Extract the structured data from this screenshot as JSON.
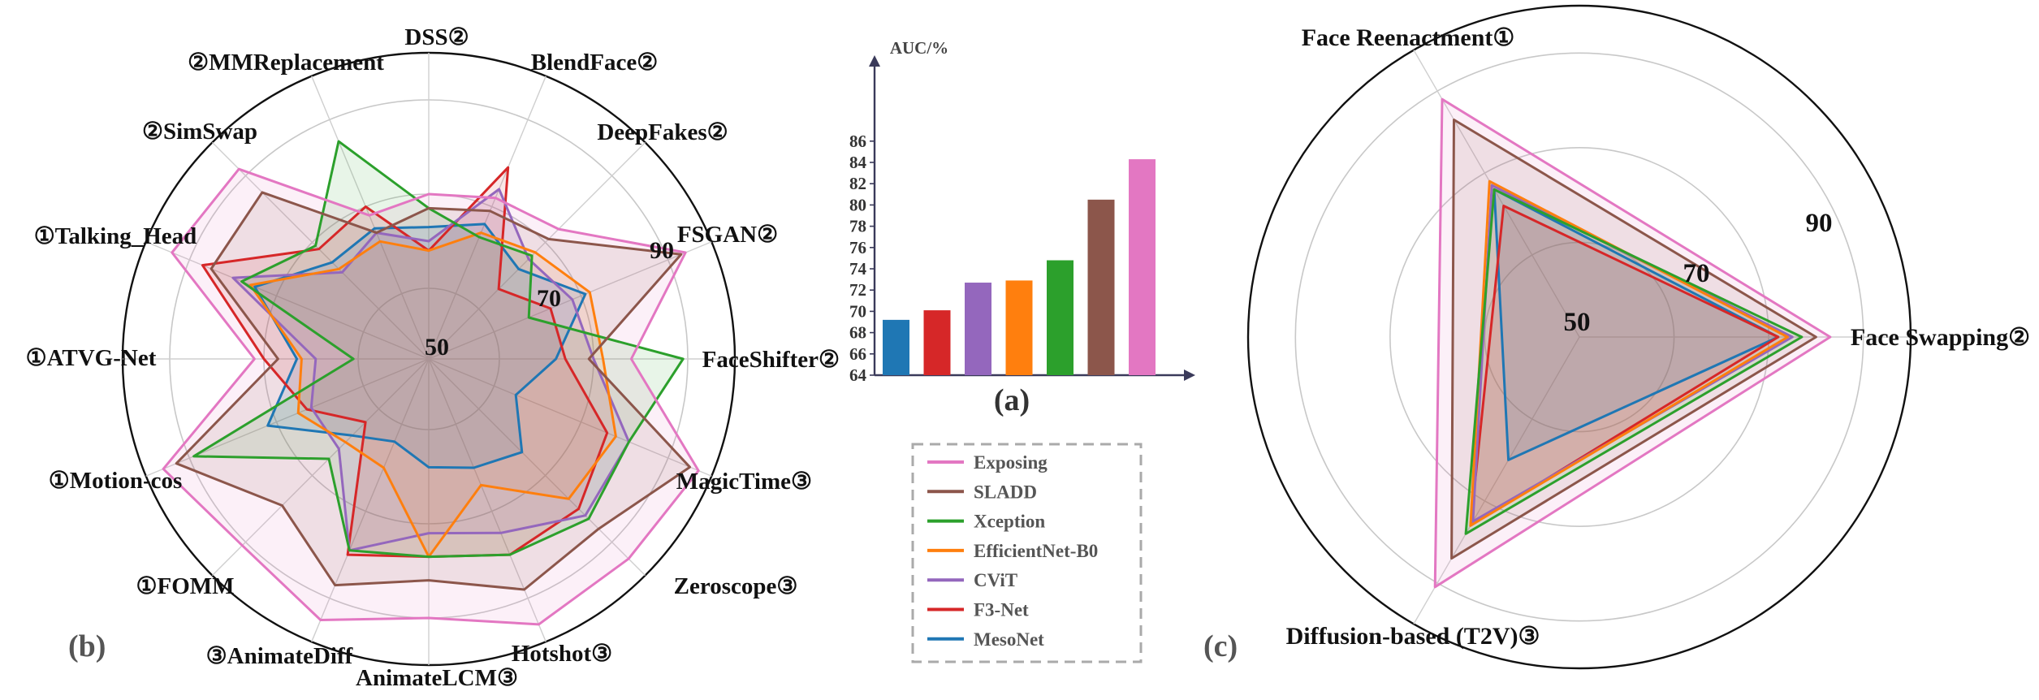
{
  "colors": {
    "Exposing": "#e377c2",
    "SLADD": "#8c564b",
    "Xception": "#2ca02c",
    "EfficientNet-B0": "#ff7f0e",
    "CViT": "#9467bd",
    "F3-Net": "#d62728",
    "MesoNet": "#1f77b4"
  },
  "panel_labels": {
    "a": "(a)",
    "b": "(b)",
    "c": "(c)"
  },
  "legend": [
    "Exposing",
    "SLADD",
    "Xception",
    "EfficientNet-B0",
    "CViT",
    "F3-Net",
    "MesoNet"
  ],
  "chart_data": [
    {
      "panel": "a",
      "type": "bar",
      "ylabel": "AUC/%",
      "ylim": [
        64,
        87
      ],
      "yticks": [
        64,
        66,
        68,
        70,
        72,
        74,
        76,
        78,
        80,
        82,
        84,
        86
      ],
      "categories": [
        "MesoNet",
        "F3-Net",
        "CViT",
        "EfficientNet-B0",
        "Xception",
        "SLADD",
        "Exposing"
      ],
      "values": [
        69.2,
        70.1,
        72.7,
        72.9,
        74.8,
        80.5,
        84.3
      ]
    },
    {
      "panel": "b",
      "type": "radar",
      "rings": [
        50,
        70,
        90
      ],
      "ring_labels": [
        "50",
        "70",
        "90"
      ],
      "r_range": [
        35,
        100
      ],
      "categories": [
        "DSS②",
        "BlendFace②",
        "DeepFakes②",
        "FSGAN②",
        "FaceShifter②",
        "MagicTime③",
        "Zeroscope③",
        "Hotshot③",
        "AnimateLCM③",
        "③AnimateDiff",
        "①FOMM",
        "①Motion-cos",
        "①ATVG-Net",
        "①Talking_Head",
        "②SimSwap",
        "②MMReplacement"
      ],
      "series": [
        {
          "name": "Exposing",
          "values": [
            70,
            72,
            74,
            94,
            78,
            97,
            95,
            96,
            90,
            95,
            91,
            96,
            72,
            94,
            92,
            68
          ]
        },
        {
          "name": "SLADD",
          "values": [
            67,
            69,
            71,
            93,
            69,
            95,
            86,
            88,
            82,
            87,
            79,
            93,
            67,
            85,
            85,
            64
          ]
        },
        {
          "name": "Xception",
          "values": [
            67,
            63,
            66,
            58,
            89,
            81,
            83,
            80,
            77,
            79,
            65,
            89,
            51,
            78,
            69,
            85
          ]
        },
        {
          "name": "EfficientNet-B0",
          "values": [
            58,
            64,
            67,
            72,
            72,
            78,
            77,
            64,
            77,
            60,
            60,
            65,
            62,
            76,
            62,
            62
          ]
        },
        {
          "name": "CViT",
          "values": [
            60,
            74,
            65,
            68,
            70,
            81,
            82,
            75,
            72,
            79,
            62,
            62,
            59,
            80,
            61,
            64
          ]
        },
        {
          "name": "F3-Net",
          "values": [
            58,
            79,
            56,
            63,
            64,
            76,
            80,
            80,
            77,
            80,
            54,
            63,
            70,
            87,
            68,
            70
          ]
        },
        {
          "name": "MesoNet",
          "values": [
            63,
            66,
            62,
            71,
            62,
            55,
            63,
            60,
            58,
            54,
            58,
            72,
            63,
            75,
            64,
            65
          ]
        }
      ]
    },
    {
      "panel": "c",
      "type": "radar",
      "rings": [
        50,
        70,
        90
      ],
      "ring_labels": [
        "50",
        "70",
        "90"
      ],
      "r_range": [
        30,
        100
      ],
      "categories": [
        "Face Swapping②",
        "Face Reenactment①",
        "Diffusion-based (T2V)③"
      ],
      "series": [
        {
          "name": "Exposing",
          "values": [
            83,
            88,
            91
          ]
        },
        {
          "name": "SLADD",
          "values": [
            80,
            83,
            84
          ]
        },
        {
          "name": "Xception",
          "values": [
            77,
            66,
            78
          ]
        },
        {
          "name": "EfficientNet-B0",
          "values": [
            74,
            68,
            76
          ]
        },
        {
          "name": "CViT",
          "values": [
            75,
            67,
            75
          ]
        },
        {
          "name": "F3-Net",
          "values": [
            72,
            62,
            76
          ]
        },
        {
          "name": "MesoNet",
          "values": [
            72,
            66,
            60
          ]
        }
      ]
    }
  ]
}
